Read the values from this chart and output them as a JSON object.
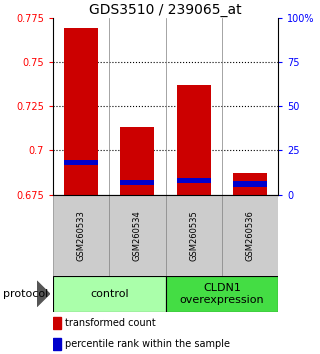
{
  "title": "GDS3510 / 239065_at",
  "samples": [
    "GSM260533",
    "GSM260534",
    "GSM260535",
    "GSM260536"
  ],
  "transformed_counts": [
    0.769,
    0.713,
    0.737,
    0.687
  ],
  "percentile_ranks": [
    0.693,
    0.682,
    0.683,
    0.681
  ],
  "ymin": 0.675,
  "ymax": 0.775,
  "yticks": [
    0.675,
    0.7,
    0.725,
    0.75,
    0.775
  ],
  "ytick_labels": [
    "0.675",
    "0.7",
    "0.725",
    "0.75",
    "0.775"
  ],
  "right_yticks_pct": [
    0,
    25,
    50,
    75,
    100
  ],
  "right_ytick_labels": [
    "0",
    "25",
    "50",
    "75",
    "100%"
  ],
  "groups": [
    {
      "label": "control",
      "samples": [
        0,
        1
      ],
      "color": "#aaffaa"
    },
    {
      "label": "CLDN1\noverexpression",
      "samples": [
        2,
        3
      ],
      "color": "#44dd44"
    }
  ],
  "bar_color_red": "#cc0000",
  "bar_color_blue": "#0000cc",
  "bar_width": 0.6,
  "protocol_label": "protocol",
  "legend_red": "transformed count",
  "legend_blue": "percentile rank within the sample",
  "title_fontsize": 10,
  "tick_fontsize": 7,
  "sample_fontsize": 6,
  "group_fontsize": 8,
  "legend_fontsize": 7
}
